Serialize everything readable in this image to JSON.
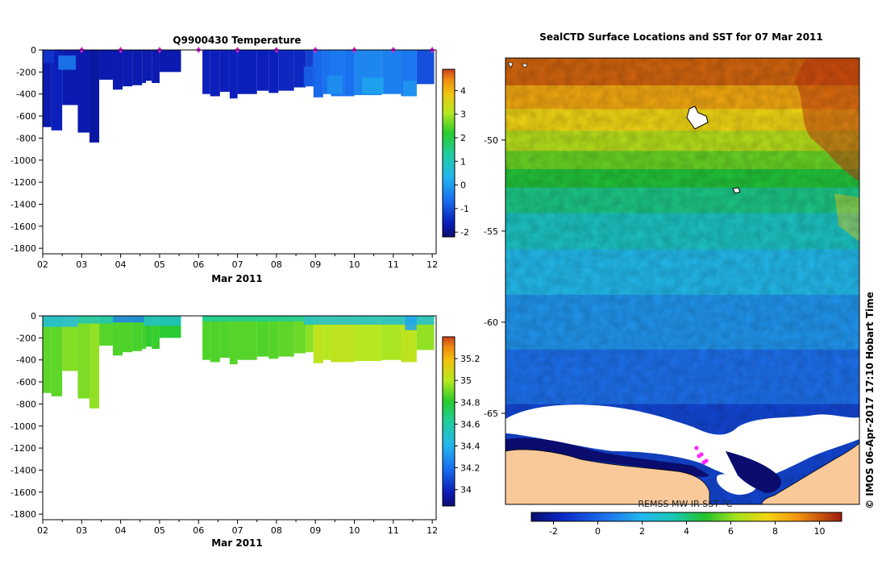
{
  "chart_data": [
    {
      "id": "temperature",
      "type": "heatmap",
      "title": "Q9900430  Temperature",
      "xlabel": "Mar 2011",
      "ylabel": "",
      "xlim": [
        2,
        12.1
      ],
      "ylim": [
        -1850,
        0
      ],
      "x_ticks": [
        "02",
        "03",
        "04",
        "05",
        "06",
        "07",
        "08",
        "09",
        "10",
        "11",
        "12"
      ],
      "y_ticks": [
        0,
        -200,
        -400,
        -600,
        -800,
        -1000,
        -1200,
        -1400,
        -1600,
        -1800
      ],
      "colorbar": {
        "ticks": [
          "4",
          "3",
          "2",
          "1",
          "0",
          "-1",
          "-2"
        ],
        "range": [
          -2.2,
          4.9
        ]
      },
      "profile_markers_day": [
        3,
        4,
        5,
        6,
        7,
        8,
        9,
        10,
        11,
        12
      ],
      "columns": [
        {
          "t0": 2.0,
          "t1": 2.22,
          "depth": -700,
          "value": -1.7
        },
        {
          "t0": 2.22,
          "t1": 2.5,
          "depth": -730,
          "value": -1.6
        },
        {
          "t0": 2.5,
          "t1": 2.9,
          "depth": -500,
          "value": -1.7
        },
        {
          "t0": 2.9,
          "t1": 3.2,
          "depth": -750,
          "value": -1.7
        },
        {
          "t0": 3.2,
          "t1": 3.45,
          "depth": -840,
          "value": -1.8
        },
        {
          "t0": 3.45,
          "t1": 3.8,
          "depth": -270,
          "value": -1.7
        },
        {
          "t0": 3.8,
          "t1": 4.05,
          "depth": -360,
          "value": -1.7
        },
        {
          "t0": 4.05,
          "t1": 4.3,
          "depth": -330,
          "value": -1.7
        },
        {
          "t0": 4.3,
          "t1": 4.55,
          "depth": -320,
          "value": -1.7
        },
        {
          "t0": 4.55,
          "t1": 4.65,
          "depth": -300,
          "value": -1.7
        },
        {
          "t0": 4.65,
          "t1": 4.8,
          "depth": -280,
          "value": -1.7
        },
        {
          "t0": 4.8,
          "t1": 5.0,
          "depth": -300,
          "value": -1.7
        },
        {
          "t0": 5.0,
          "t1": 5.55,
          "depth": -200,
          "value": -1.7
        },
        {
          "t0": 6.1,
          "t1": 6.3,
          "depth": -400,
          "value": -1.6
        },
        {
          "t0": 6.3,
          "t1": 6.55,
          "depth": -420,
          "value": -1.6
        },
        {
          "t0": 6.55,
          "t1": 6.8,
          "depth": -380,
          "value": -1.6
        },
        {
          "t0": 6.8,
          "t1": 7.0,
          "depth": -440,
          "value": -1.6
        },
        {
          "t0": 7.0,
          "t1": 7.5,
          "depth": -400,
          "value": -1.6
        },
        {
          "t0": 7.5,
          "t1": 7.8,
          "depth": -370,
          "value": -1.6
        },
        {
          "t0": 7.8,
          "t1": 8.05,
          "depth": -390,
          "value": -1.6
        },
        {
          "t0": 8.05,
          "t1": 8.45,
          "depth": -370,
          "value": -1.5
        },
        {
          "t0": 8.45,
          "t1": 8.75,
          "depth": -340,
          "value": -1.5
        },
        {
          "t0": 8.75,
          "t1": 8.95,
          "depth": -330,
          "value": -1.2
        },
        {
          "t0": 8.95,
          "t1": 9.2,
          "depth": -430,
          "value": -0.7
        },
        {
          "t0": 9.2,
          "t1": 9.4,
          "depth": -400,
          "value": -0.6
        },
        {
          "t0": 9.4,
          "t1": 9.75,
          "depth": -420,
          "value": -0.5
        },
        {
          "t0": 9.75,
          "t1": 10.0,
          "depth": -420,
          "value": -0.6
        },
        {
          "t0": 10.0,
          "t1": 10.7,
          "depth": -410,
          "value": -0.3
        },
        {
          "t0": 10.7,
          "t1": 11.2,
          "depth": -400,
          "value": -0.4
        },
        {
          "t0": 11.2,
          "t1": 11.6,
          "depth": -420,
          "value": -0.5
        },
        {
          "t0": 11.6,
          "t1": 12.05,
          "depth": -310,
          "value": -1.0
        }
      ],
      "near_surface": [
        {
          "t0": 2.0,
          "t1": 2.3,
          "d0": 0,
          "d1": -120,
          "value": -1.3
        },
        {
          "t0": 2.4,
          "t1": 2.85,
          "d0": -50,
          "d1": -180,
          "value": -0.4
        },
        {
          "t0": 8.7,
          "t1": 9.0,
          "d0": -150,
          "d1": -330,
          "value": -0.8
        },
        {
          "t0": 9.3,
          "t1": 9.7,
          "d0": -230,
          "d1": -400,
          "value": -0.2
        },
        {
          "t0": 10.2,
          "t1": 10.75,
          "d0": -250,
          "d1": -400,
          "value": 0.1
        },
        {
          "t0": 11.25,
          "t1": 11.6,
          "d0": -280,
          "d1": -420,
          "value": -0.1
        }
      ]
    },
    {
      "id": "salinity",
      "type": "heatmap",
      "title": "",
      "xlabel": "Mar 2011",
      "ylabel": "",
      "xlim": [
        2,
        12.1
      ],
      "ylim": [
        -1850,
        0
      ],
      "x_ticks": [
        "02",
        "03",
        "04",
        "05",
        "06",
        "07",
        "08",
        "09",
        "10",
        "11",
        "12"
      ],
      "y_ticks": [
        0,
        -200,
        -400,
        -600,
        -800,
        -1000,
        -1200,
        -1400,
        -1600,
        -1800
      ],
      "colorbar": {
        "ticks": [
          "35.2",
          "35",
          "34.8",
          "34.6",
          "34.4",
          "34.2",
          "34"
        ],
        "range": [
          33.85,
          35.4
        ]
      },
      "columns": [
        {
          "t0": 2.0,
          "t1": 2.22,
          "depth": -700,
          "value": 34.88
        },
        {
          "t0": 2.22,
          "t1": 2.5,
          "depth": -730,
          "value": 34.88
        },
        {
          "t0": 2.5,
          "t1": 2.9,
          "depth": -500,
          "value": 34.93
        },
        {
          "t0": 2.9,
          "t1": 3.2,
          "depth": -750,
          "value": 34.92
        },
        {
          "t0": 3.2,
          "t1": 3.45,
          "depth": -840,
          "value": 34.95
        },
        {
          "t0": 3.45,
          "t1": 3.8,
          "depth": -270,
          "value": 34.87
        },
        {
          "t0": 3.8,
          "t1": 4.05,
          "depth": -360,
          "value": 34.86
        },
        {
          "t0": 4.05,
          "t1": 4.3,
          "depth": -330,
          "value": 34.86
        },
        {
          "t0": 4.3,
          "t1": 4.55,
          "depth": -320,
          "value": 34.85
        },
        {
          "t0": 4.55,
          "t1": 4.65,
          "depth": -300,
          "value": 34.84
        },
        {
          "t0": 4.65,
          "t1": 4.8,
          "depth": -280,
          "value": 34.82
        },
        {
          "t0": 4.8,
          "t1": 5.0,
          "depth": -300,
          "value": 34.83
        },
        {
          "t0": 5.0,
          "t1": 5.55,
          "depth": -200,
          "value": 34.8
        },
        {
          "t0": 6.1,
          "t1": 6.3,
          "depth": -400,
          "value": 34.86
        },
        {
          "t0": 6.3,
          "t1": 6.55,
          "depth": -420,
          "value": 34.86
        },
        {
          "t0": 6.55,
          "t1": 6.8,
          "depth": -380,
          "value": 34.86
        },
        {
          "t0": 6.8,
          "t1": 7.0,
          "depth": -440,
          "value": 34.87
        },
        {
          "t0": 7.0,
          "t1": 7.5,
          "depth": -400,
          "value": 34.87
        },
        {
          "t0": 7.5,
          "t1": 7.8,
          "depth": -370,
          "value": 34.86
        },
        {
          "t0": 7.8,
          "t1": 8.05,
          "depth": -390,
          "value": 34.87
        },
        {
          "t0": 8.05,
          "t1": 8.45,
          "depth": -370,
          "value": 34.88
        },
        {
          "t0": 8.45,
          "t1": 8.75,
          "depth": -340,
          "value": 34.9
        },
        {
          "t0": 8.75,
          "t1": 8.95,
          "depth": -330,
          "value": 34.94
        },
        {
          "t0": 8.95,
          "t1": 9.2,
          "depth": -430,
          "value": 35.02
        },
        {
          "t0": 9.2,
          "t1": 9.4,
          "depth": -400,
          "value": 35.0
        },
        {
          "t0": 9.4,
          "t1": 9.75,
          "depth": -420,
          "value": 35.02
        },
        {
          "t0": 9.75,
          "t1": 10.0,
          "depth": -420,
          "value": 35.02
        },
        {
          "t0": 10.0,
          "t1": 10.7,
          "depth": -410,
          "value": 35.0
        },
        {
          "t0": 10.7,
          "t1": 11.2,
          "depth": -400,
          "value": 34.98
        },
        {
          "t0": 11.2,
          "t1": 11.6,
          "depth": -420,
          "value": 35.02
        },
        {
          "t0": 11.6,
          "t1": 12.05,
          "depth": -310,
          "value": 34.95
        }
      ],
      "near_surface": [
        {
          "t0": 2.0,
          "t1": 2.9,
          "d0": 0,
          "d1": -100,
          "value": 34.45
        },
        {
          "t0": 2.9,
          "t1": 3.8,
          "d0": 0,
          "d1": -70,
          "value": 34.55
        },
        {
          "t0": 3.8,
          "t1": 4.6,
          "d0": 0,
          "d1": -60,
          "value": 34.25
        },
        {
          "t0": 4.6,
          "t1": 5.55,
          "d0": 0,
          "d1": -90,
          "value": 34.5
        },
        {
          "t0": 6.1,
          "t1": 8.7,
          "d0": 0,
          "d1": -50,
          "value": 34.62
        },
        {
          "t0": 8.7,
          "t1": 12.05,
          "d0": 0,
          "d1": -80,
          "value": 34.48
        },
        {
          "t0": 11.3,
          "t1": 11.6,
          "d0": 0,
          "d1": -130,
          "value": 34.35
        }
      ]
    },
    {
      "id": "sst_map",
      "type": "heatmap",
      "title": "SealCTD Surface Locations and SST for 07 Mar 2011",
      "xlabel": "",
      "ylabel": "",
      "lat_ticks": [
        "-50",
        "-55",
        "-60",
        "-65"
      ],
      "lat_range": [
        -45.5,
        -70
      ],
      "colorbar": {
        "label": "REMSS MW-IR SST °C",
        "ticks": [
          "-2",
          "0",
          "2",
          "4",
          "6",
          "8",
          "10"
        ],
        "range": [
          -3,
          11
        ]
      },
      "sst_bands": [
        {
          "lat0": -45.5,
          "lat1": -47.0,
          "value": 9.8
        },
        {
          "lat0": -47.0,
          "lat1": -48.3,
          "value": 8.6
        },
        {
          "lat0": -48.3,
          "lat1": -49.5,
          "value": 7.6
        },
        {
          "lat0": -49.5,
          "lat1": -50.6,
          "value": 6.6
        },
        {
          "lat0": -50.6,
          "lat1": -51.6,
          "value": 5.6
        },
        {
          "lat0": -51.6,
          "lat1": -52.6,
          "value": 4.7
        },
        {
          "lat0": -52.6,
          "lat1": -54.0,
          "value": 3.9
        },
        {
          "lat0": -54.0,
          "lat1": -56.0,
          "value": 3.0
        },
        {
          "lat0": -56.0,
          "lat1": -58.5,
          "value": 2.1
        },
        {
          "lat0": -58.5,
          "lat1": -61.5,
          "value": 1.2
        },
        {
          "lat0": -61.5,
          "lat1": -64.5,
          "value": 0.3
        },
        {
          "lat0": -64.5,
          "lat1": -70.0,
          "value": -0.8
        }
      ],
      "seal_locations": 5,
      "watermark": "© IMOS 06-Apr-2017 17:10 Hobart Time"
    }
  ]
}
